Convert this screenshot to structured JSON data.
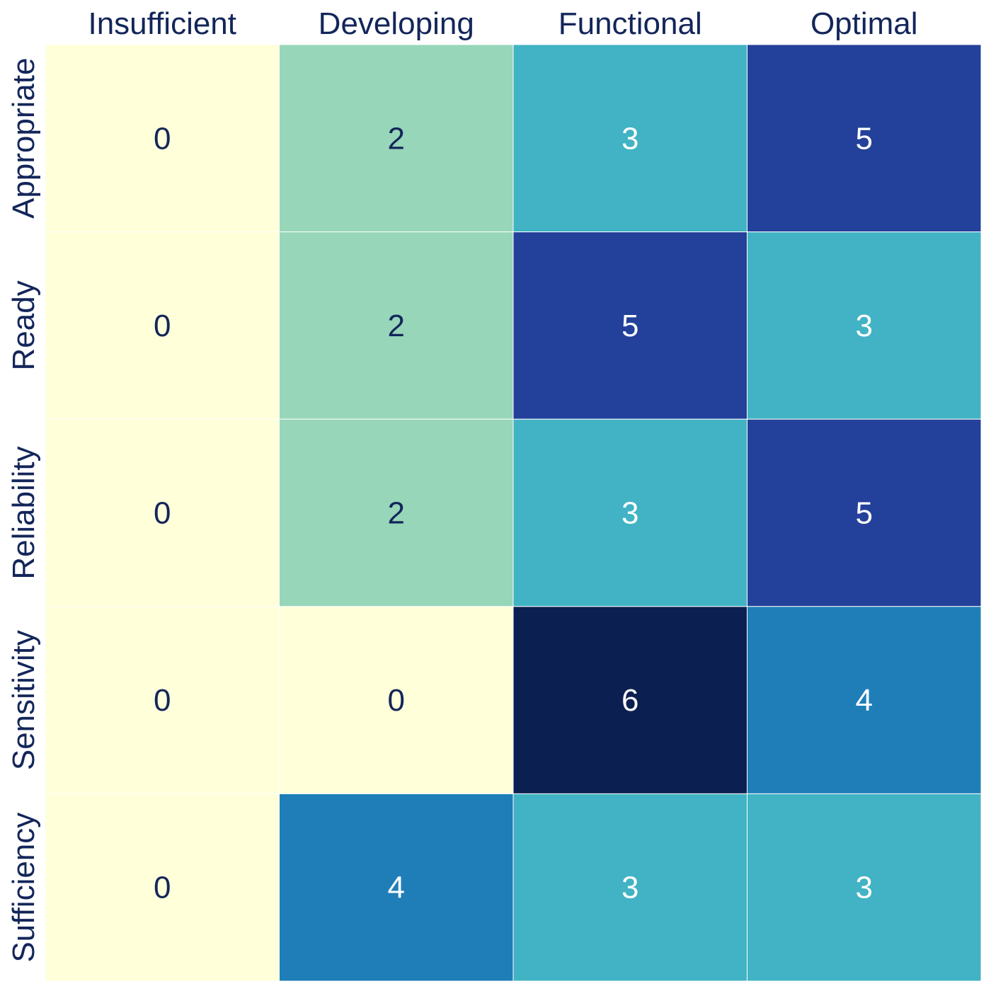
{
  "chart_data": {
    "type": "heatmap",
    "title": "",
    "xlabel": "",
    "ylabel": "",
    "columns": [
      "Insufficient",
      "Developing",
      "Functional",
      "Optimal"
    ],
    "rows": [
      "Appropriate",
      "Ready",
      "Reliability",
      "Sensitivity",
      "Sufficiency"
    ],
    "values": [
      [
        0,
        2,
        3,
        5
      ],
      [
        0,
        2,
        5,
        3
      ],
      [
        0,
        2,
        3,
        5
      ],
      [
        0,
        0,
        6,
        4
      ],
      [
        0,
        4,
        3,
        3
      ]
    ],
    "value_range": [
      0,
      6
    ],
    "colormap": "YlGnBu",
    "color_scale": {
      "0": "#ffffd9",
      "2": "#97d6b9",
      "3": "#41b3c4",
      "4": "#1f7eb8",
      "5": "#23409a",
      "6": "#0c1f51"
    },
    "label_color_dark": "#13265a",
    "label_color_light": "#ffffff",
    "legend": "none",
    "grid": false
  }
}
